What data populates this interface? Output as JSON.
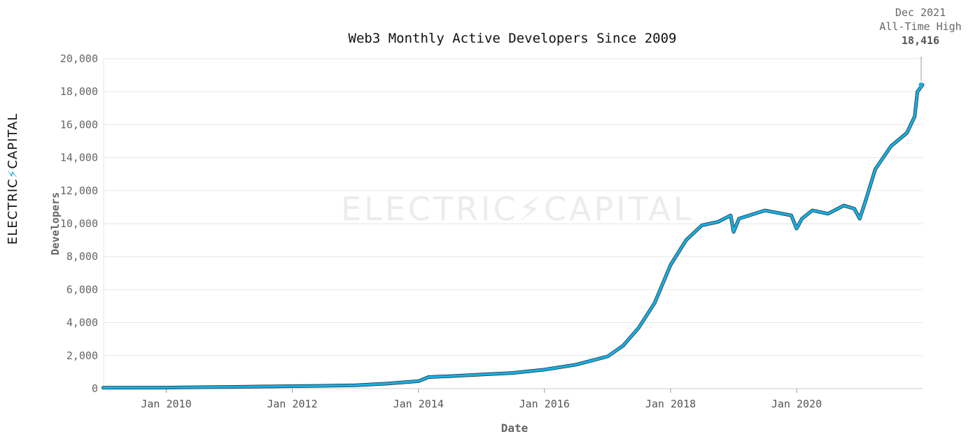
{
  "brand": {
    "left": "ELECTRIC",
    "right": "CAPITAL",
    "watermark_left": "ELECTRIC",
    "watermark_right": "CAPITAL"
  },
  "chart_data": {
    "type": "line",
    "title": "Web3 Monthly Active Developers Since 2009",
    "xlabel": "Date",
    "ylabel": "Developers",
    "ylim": [
      0,
      20000
    ],
    "yticks": [
      0,
      2000,
      4000,
      6000,
      8000,
      10000,
      12000,
      14000,
      16000,
      18000,
      20000
    ],
    "ytick_labels": [
      "0",
      "2,000",
      "4,000",
      "6,000",
      "8,000",
      "10,000",
      "12,000",
      "14,000",
      "16,000",
      "18,000",
      "20,000"
    ],
    "xlim": [
      "2009-01-03",
      "2021-12-31"
    ],
    "xticks": [
      "2010-01-01",
      "2012-01-01",
      "2014-01-01",
      "2016-01-01",
      "2018-01-01",
      "2020-01-01"
    ],
    "xtick_labels": [
      "Jan 2010",
      "Jan 2012",
      "Jan 2014",
      "Jan 2016",
      "Jan 2018",
      "Jan 2020"
    ],
    "grid": "horizontal",
    "line_color": "#1aaee0",
    "series": [
      {
        "x": [
          "2009-01-01",
          "2010-01-01",
          "2011-01-01",
          "2012-01-01",
          "2012-07-01",
          "2013-01-01",
          "2013-07-01",
          "2014-01-01",
          "2014-03-01",
          "2014-07-01",
          "2015-01-01",
          "2015-07-01",
          "2016-01-01",
          "2016-07-01",
          "2017-01-01",
          "2017-04-01",
          "2017-07-01",
          "2017-10-01",
          "2018-01-01",
          "2018-04-01",
          "2018-07-01",
          "2018-10-01",
          "2018-12-15",
          "2019-01-01",
          "2019-02-01",
          "2019-07-01",
          "2019-12-01",
          "2020-01-01",
          "2020-02-01",
          "2020-04-01",
          "2020-07-01",
          "2020-10-01",
          "2020-12-01",
          "2021-01-01",
          "2021-02-01",
          "2021-04-01",
          "2021-07-01",
          "2021-10-01",
          "2021-11-15",
          "2021-12-01",
          "2021-12-31"
        ],
        "values": [
          50,
          60,
          100,
          150,
          170,
          200,
          300,
          450,
          700,
          750,
          850,
          950,
          1150,
          1450,
          1950,
          2600,
          3700,
          5200,
          7500,
          9000,
          9900,
          10100,
          10500,
          9500,
          10300,
          10800,
          10500,
          9700,
          10300,
          10800,
          10600,
          11100,
          10900,
          10300,
          11300,
          13300,
          14700,
          15500,
          16500,
          18000,
          18416
        ]
      }
    ],
    "annotation": {
      "date_label": "Dec 2021",
      "text": "All-Time High",
      "value_label": "18,416",
      "x": "2021-12-31",
      "y": 18416
    }
  }
}
